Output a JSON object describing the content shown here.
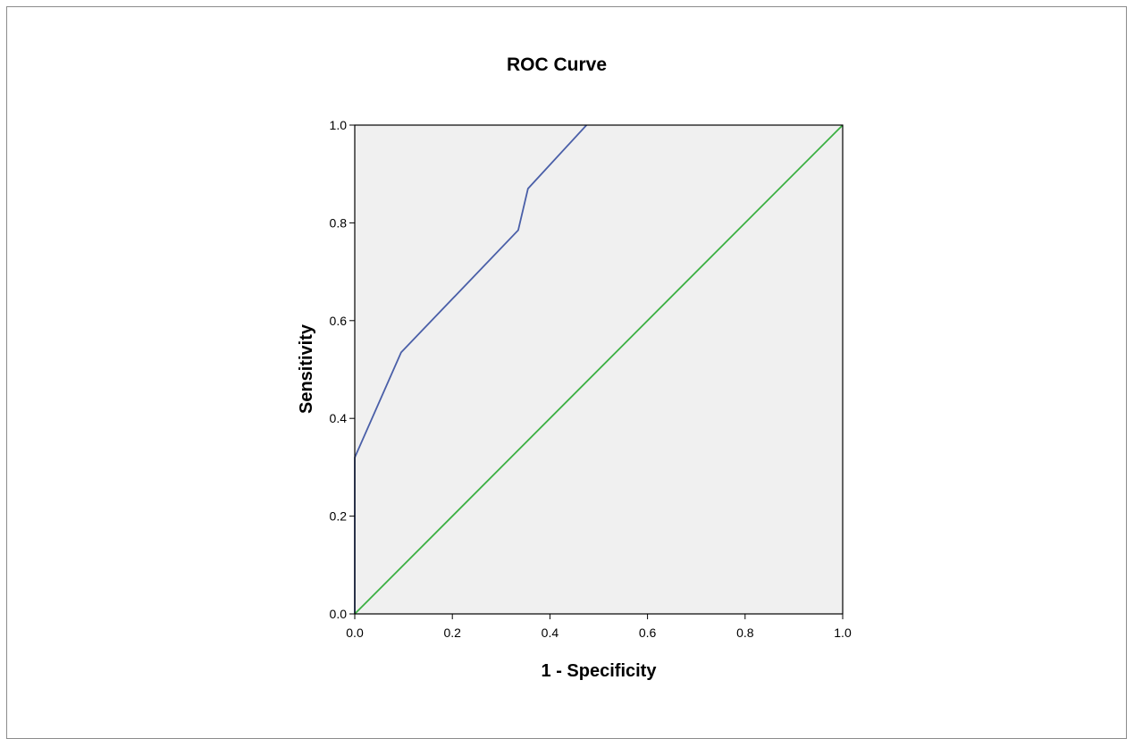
{
  "chart_data": {
    "type": "line",
    "title": "ROC Curve",
    "xlabel": "1 - Specificity",
    "ylabel": "Sensitivity",
    "xlim": [
      0.0,
      1.0
    ],
    "ylim": [
      0.0,
      1.0
    ],
    "xticks": [
      "0.0",
      "0.2",
      "0.4",
      "0.6",
      "0.8",
      "1.0"
    ],
    "yticks": [
      "0.0",
      "0.2",
      "0.4",
      "0.6",
      "0.8",
      "1.0"
    ],
    "grid": false,
    "background_color": "#f0f0f0",
    "series": [
      {
        "color": "#4a5fa8",
        "x": [
          0.0,
          0.0,
          0.095,
          0.335,
          0.355,
          0.475
        ],
        "y": [
          0.0,
          0.32,
          0.535,
          0.785,
          0.87,
          1.0
        ]
      },
      {
        "color": "#3cb043",
        "x": [
          0.0,
          1.0
        ],
        "y": [
          0.0,
          1.0
        ]
      }
    ]
  }
}
